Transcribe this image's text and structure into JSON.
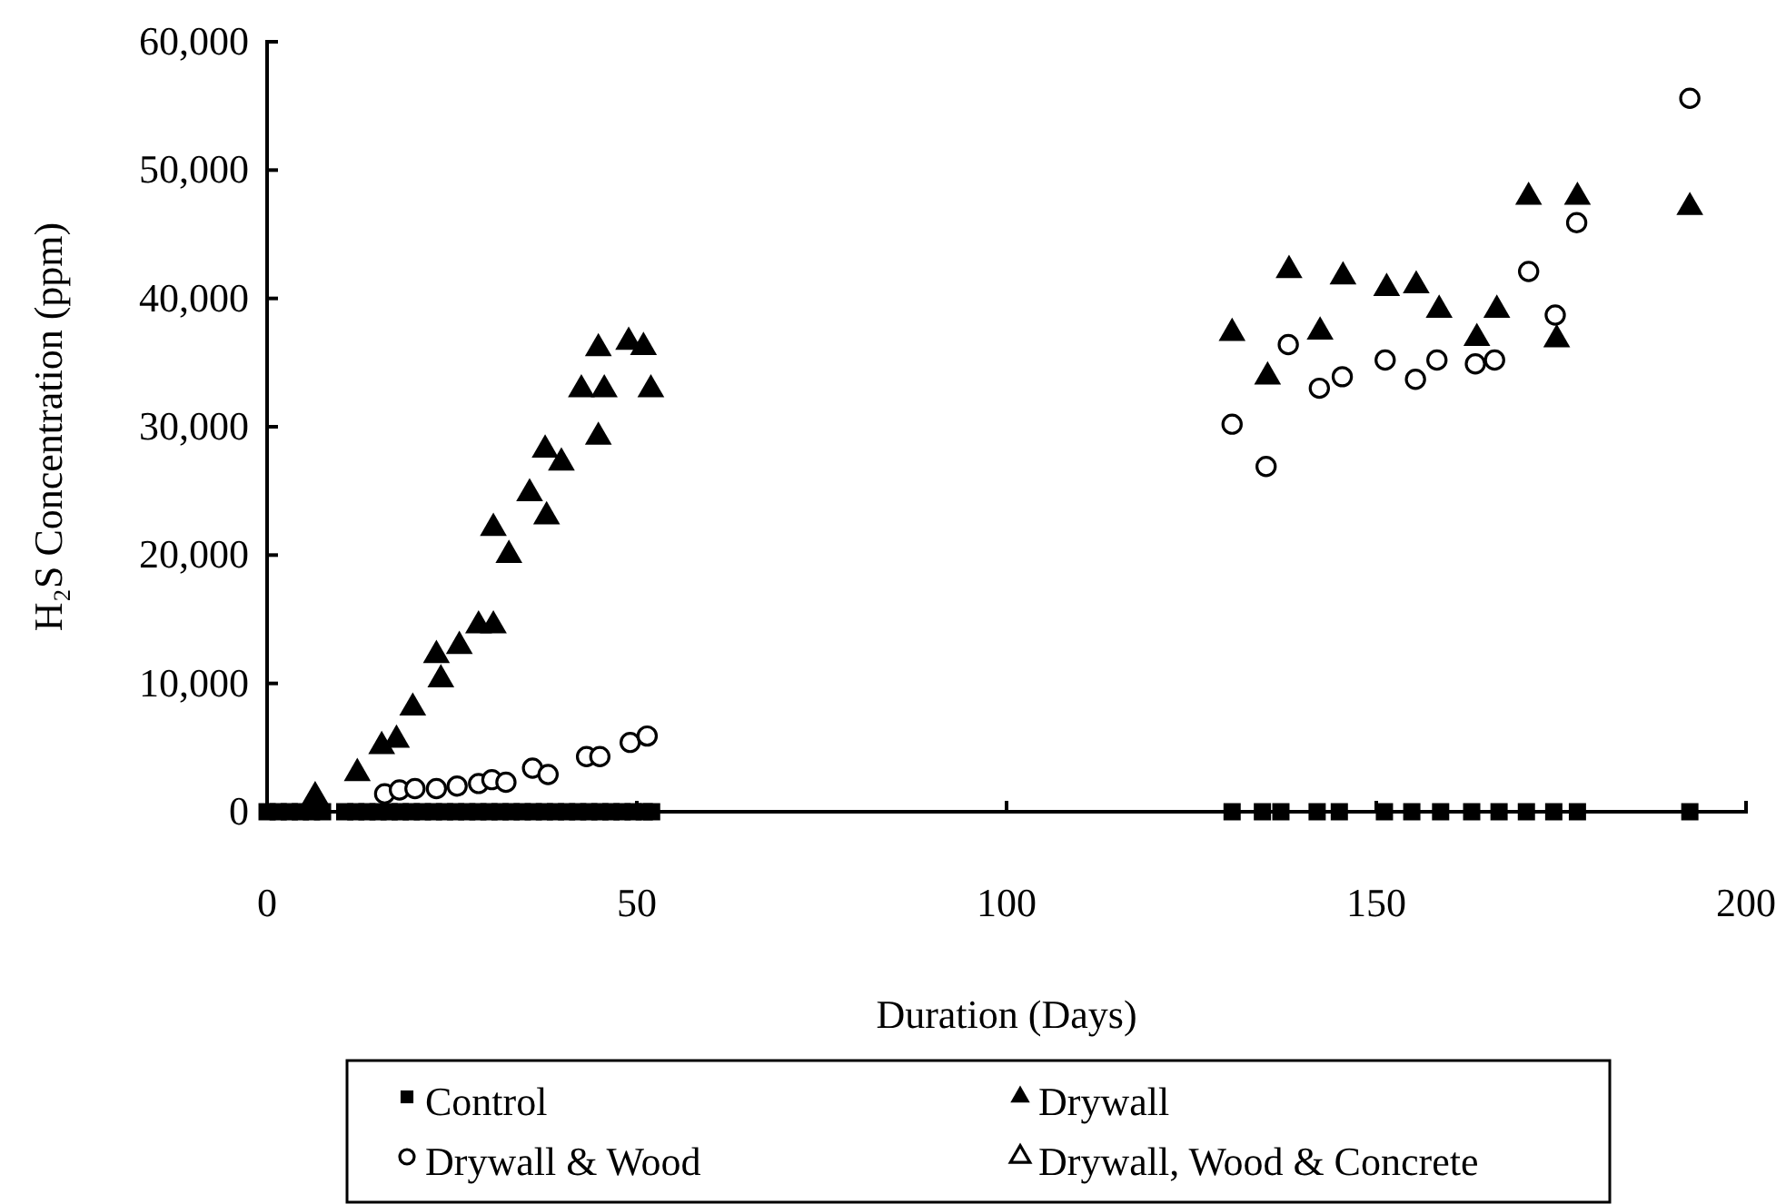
{
  "chart_data": {
    "type": "scatter",
    "xlabel": "Duration (Days)",
    "ylabel": "H₂S Concentration (ppm)",
    "xlim": [
      0,
      200
    ],
    "xticks": [
      0,
      50,
      100,
      150,
      200
    ],
    "ylim": [
      0,
      60000
    ],
    "yticks": [
      {
        "value": 0,
        "label": "0"
      },
      {
        "value": 10000,
        "label": "10,000"
      },
      {
        "value": 20000,
        "label": "20,000"
      },
      {
        "value": 30000,
        "label": "30,000"
      },
      {
        "value": 40000,
        "label": "40,000"
      },
      {
        "value": 50000,
        "label": "50,000"
      },
      {
        "value": 60000,
        "label": "60,000"
      }
    ],
    "grid": false,
    "legend": "bottom",
    "series": [
      {
        "name": "Control",
        "color": "#000000",
        "marker": "square",
        "x": [
          0,
          1.5,
          3,
          4.5,
          6,
          7.5,
          10.5,
          12,
          13.5,
          15,
          16.5,
          18,
          19.5,
          21,
          22.5,
          24,
          25.5,
          27,
          28.5,
          30,
          31.5,
          33,
          34.5,
          36,
          37.5,
          39,
          40.5,
          42,
          43.5,
          45,
          46.5,
          48,
          49.5,
          51,
          52,
          130.5,
          134.6,
          137.1,
          142,
          145,
          151.1,
          154.8,
          158.7,
          162.9,
          166.6,
          170.3,
          174,
          177.2,
          192.4
        ],
        "values": [
          0,
          0,
          0,
          0,
          0,
          0,
          0,
          0,
          0,
          0,
          0,
          0,
          0,
          0,
          0,
          0,
          0,
          0,
          0,
          0,
          0,
          0,
          0,
          0,
          0,
          0,
          0,
          0,
          0,
          0,
          0,
          0,
          0,
          0,
          0,
          0,
          0,
          0,
          0,
          0,
          0,
          0,
          0,
          0,
          0,
          0,
          0,
          0,
          0
        ]
      },
      {
        "name": "Drywall",
        "color": "#000000",
        "marker": "triangle",
        "x": [
          6.5,
          12.2,
          15.5,
          17.5,
          19.7,
          22.9,
          23.5,
          26,
          28.6,
          30.6,
          30.6,
          32.7,
          35.5,
          37.8,
          37.6,
          39.8,
          42.5,
          45.6,
          44.8,
          44.8,
          48.9,
          50.9,
          51.9,
          130.5,
          135.3,
          138.2,
          142.4,
          145.5,
          151.4,
          155.4,
          158.5,
          163.6,
          166.3,
          170.6,
          174.4,
          177.2,
          192.4
        ],
        "values": [
          1200,
          3000,
          5100,
          5600,
          8100,
          12200,
          10300,
          12900,
          14500,
          14500,
          22100,
          20000,
          24800,
          23000,
          28200,
          27200,
          32900,
          32900,
          29200,
          36100,
          36600,
          36200,
          32900,
          37300,
          33900,
          42200,
          37400,
          41700,
          40800,
          41000,
          39100,
          36900,
          39100,
          47900,
          36800,
          47900,
          47100
        ]
      },
      {
        "name": "Drywall & Wood",
        "color": "#000000",
        "marker": "circle",
        "x": [
          15.9,
          17.9,
          20,
          22.9,
          25.7,
          28.6,
          30.4,
          32.3,
          35.9,
          38,
          43.2,
          45,
          49.1,
          51.4,
          130.5,
          135.1,
          138.1,
          142.3,
          145.4,
          151.2,
          155.3,
          158.2,
          163.4,
          166,
          170.6,
          174.2,
          177.1,
          192.4
        ],
        "values": [
          1400,
          1700,
          1800,
          1800,
          2000,
          2200,
          2500,
          2300,
          3400,
          2900,
          4300,
          4300,
          5400,
          5900,
          30200,
          26900,
          36400,
          33000,
          33900,
          35200,
          33700,
          35200,
          34900,
          35200,
          42100,
          38700,
          45900,
          55600
        ]
      },
      {
        "name": "Drywall, Wood & Concrete",
        "color": "#000000",
        "marker": "triangle"
      }
    ]
  }
}
